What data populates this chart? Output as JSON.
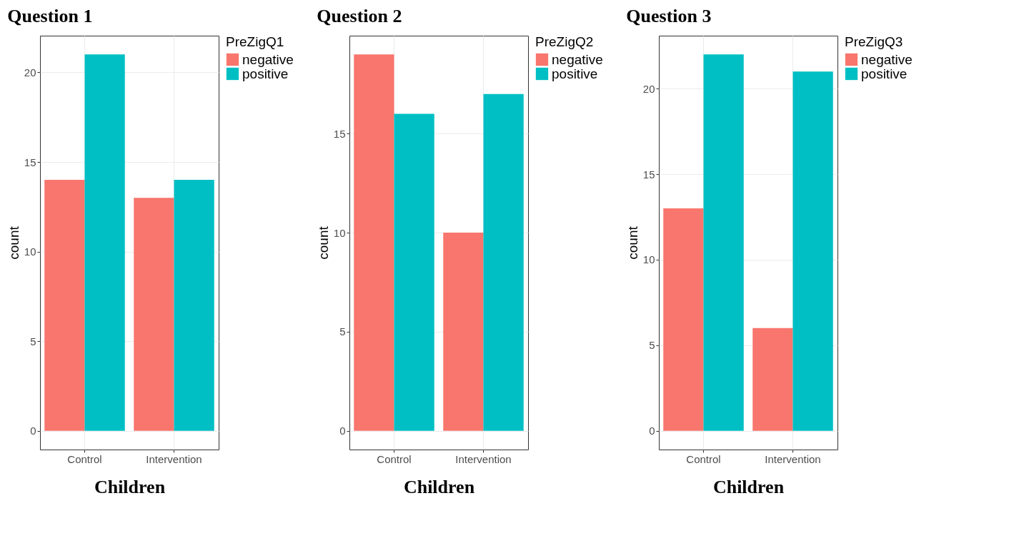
{
  "chart_data": [
    {
      "type": "bar",
      "title": "Question 1",
      "xlabel": "Children",
      "ylabel": "count",
      "legend_title": "PreZigQ1",
      "categories": [
        "Control",
        "Intervention"
      ],
      "series": [
        {
          "name": "negative",
          "color": "#f8766d",
          "values": [
            14,
            13
          ]
        },
        {
          "name": "positive",
          "color": "#00bfc4",
          "values": [
            21,
            14
          ]
        }
      ],
      "ylim": [
        -1.05,
        22.05
      ],
      "yticks": [
        0,
        5,
        10,
        15,
        20
      ],
      "grid": true,
      "legend": "right"
    },
    {
      "type": "bar",
      "title": "Question 2",
      "xlabel": "Children",
      "ylabel": "count",
      "legend_title": "PreZigQ2",
      "categories": [
        "Control",
        "Intervention"
      ],
      "series": [
        {
          "name": "negative",
          "color": "#f8766d",
          "values": [
            19,
            10
          ]
        },
        {
          "name": "positive",
          "color": "#00bfc4",
          "values": [
            16,
            17
          ]
        }
      ],
      "ylim": [
        -0.95,
        19.95
      ],
      "yticks": [
        0,
        5,
        10,
        15
      ],
      "grid": true,
      "legend": "right"
    },
    {
      "type": "bar",
      "title": "Question 3",
      "xlabel": "Children",
      "ylabel": "count",
      "legend_title": "PreZigQ3",
      "categories": [
        "Control",
        "Intervention"
      ],
      "series": [
        {
          "name": "negative",
          "color": "#f8766d",
          "values": [
            13,
            6
          ]
        },
        {
          "name": "positive",
          "color": "#00bfc4",
          "values": [
            22,
            21
          ]
        }
      ],
      "ylim": [
        -1.1,
        23.1
      ],
      "yticks": [
        0,
        5,
        10,
        15,
        20
      ],
      "grid": true,
      "legend": "right"
    }
  ]
}
